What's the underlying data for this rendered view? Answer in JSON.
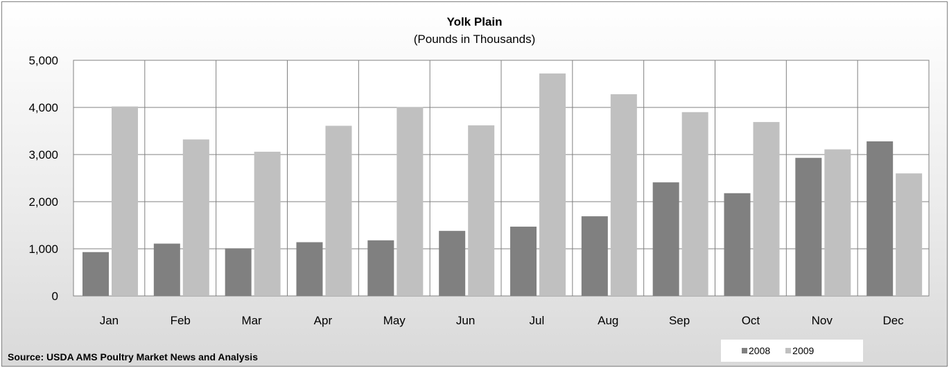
{
  "chart_data": {
    "type": "bar",
    "title": "Yolk Plain",
    "subtitle": "(Pounds in Thousands)",
    "categories": [
      "Jan",
      "Feb",
      "Mar",
      "Apr",
      "May",
      "Jun",
      "Jul",
      "Aug",
      "Sep",
      "Oct",
      "Nov",
      "Dec"
    ],
    "series": [
      {
        "name": "2008",
        "color": "#808080",
        "values": [
          930,
          1110,
          1010,
          1140,
          1180,
          1380,
          1470,
          1690,
          2410,
          2180,
          2930,
          3280
        ]
      },
      {
        "name": "2009",
        "color": "#c0c0c0",
        "values": [
          4020,
          3320,
          3060,
          3610,
          4010,
          3620,
          4720,
          4280,
          3900,
          3690,
          3110,
          2600
        ]
      }
    ],
    "ylim": [
      0,
      5000
    ],
    "yticks": [
      "0",
      "1,000",
      "2,000",
      "3,000",
      "4,000",
      "5,000"
    ],
    "ytick_values": [
      0,
      1000,
      2000,
      3000,
      4000,
      5000
    ],
    "grid": true,
    "legend_position": "bottom-right",
    "source": "Source: USDA AMS Poultry Market News and Analysis"
  }
}
